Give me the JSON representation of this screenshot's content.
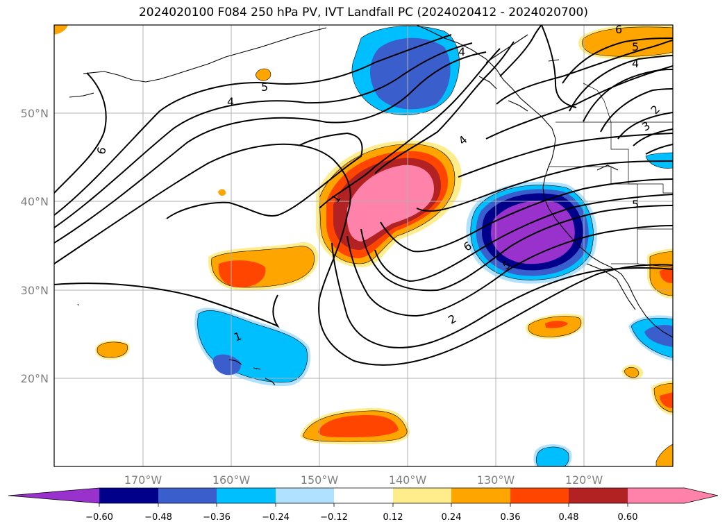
{
  "title": "2024020100 F084 250 hPa PV, IVT Landfall PC (2024020412 - 2024020700)",
  "map": {
    "lon_labels": [
      "170°W",
      "160°W",
      "150°W",
      "140°W",
      "130°W",
      "120°W"
    ],
    "lat_labels": [
      "50°N",
      "40°N",
      "30°N",
      "20°N"
    ],
    "contour_labels": [
      "6",
      "5",
      "4",
      "4",
      "1",
      "4",
      "6",
      "5",
      "2",
      "1",
      "5",
      "4",
      "3",
      "2",
      "5",
      "6"
    ]
  },
  "colorbar": {
    "tick_labels": [
      "−0.60",
      "−0.48",
      "−0.36",
      "−0.24",
      "−0.12",
      "0.12",
      "0.24",
      "0.36",
      "0.48",
      "0.60"
    ],
    "colors": [
      "#9932CC",
      "#00008B",
      "#3A5FCD",
      "#00BFFF",
      "#B0E2FF",
      "#FFFFFF",
      "#FFEC8B",
      "#FFA500",
      "#FF4500",
      "#B22222",
      "#FF82AB"
    ]
  }
}
